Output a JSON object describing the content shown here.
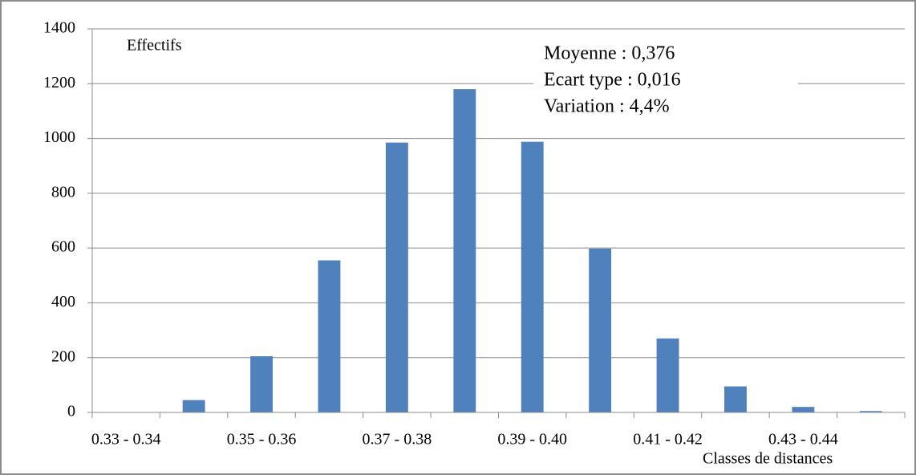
{
  "chart_data": {
    "type": "bar",
    "y_label": "Effectifs",
    "x_label": "Classes de distances",
    "annotations": [
      "Moyenne : 0,376",
      "Ecart type :  0,016",
      "Variation :  4,4%"
    ],
    "categories": [
      "0.33 - 0.34",
      null,
      "0.35 - 0.36",
      null,
      "0.37 - 0.38",
      null,
      "0.39 - 0.40",
      null,
      "0.41 - 0.42",
      null,
      "0.43 - 0.44",
      null
    ],
    "values": [
      0,
      45,
      205,
      555,
      985,
      1180,
      988,
      598,
      270,
      95,
      20,
      5
    ],
    "color": "#4f81bd",
    "ylim": [
      0,
      1400
    ],
    "yticks": [
      0,
      200,
      400,
      600,
      800,
      1000,
      1200,
      1400
    ],
    "grid": true
  }
}
